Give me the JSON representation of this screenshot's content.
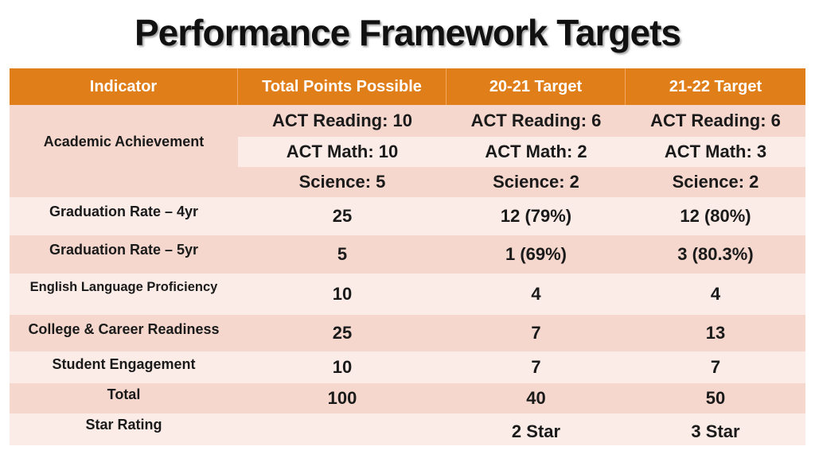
{
  "title": "Performance Framework Targets",
  "colors": {
    "header": "#e07f1a",
    "row_dark": "#f5d7cd",
    "row_light": "#fbece7"
  },
  "headers": [
    "Indicator",
    "Total Points Possible",
    "20-21 Target",
    "21-22 Target"
  ],
  "academic": {
    "indicator": "Academic Achievement",
    "rows": [
      [
        "ACT Reading: 10",
        "ACT Reading: 6",
        "ACT Reading: 6"
      ],
      [
        "ACT Math: 10",
        "ACT Math: 2",
        "ACT Math: 3"
      ],
      [
        "Science: 5",
        "Science: 2",
        "Science: 2"
      ]
    ]
  },
  "rows": [
    {
      "indicator": "Graduation Rate – 4yr",
      "points": "25",
      "t2021": "12 (79%)",
      "t2122": "12 (80%)"
    },
    {
      "indicator": "Graduation Rate – 5yr",
      "points": "5",
      "t2021": "1 (69%)",
      "t2122": "3 (80.3%)"
    },
    {
      "indicator": "English Language Proficiency",
      "points": "10",
      "t2021": "4",
      "t2122": "4"
    },
    {
      "indicator": "College & Career Readiness",
      "points": "25",
      "t2021": "7",
      "t2122": "13"
    },
    {
      "indicator": "Student Engagement",
      "points": "10",
      "t2021": "7",
      "t2122": "7"
    },
    {
      "indicator": "Total",
      "points": "100",
      "t2021": "40",
      "t2122": "50"
    },
    {
      "indicator": "Star Rating",
      "points": "",
      "t2021": "2 Star",
      "t2122": "3 Star"
    }
  ]
}
